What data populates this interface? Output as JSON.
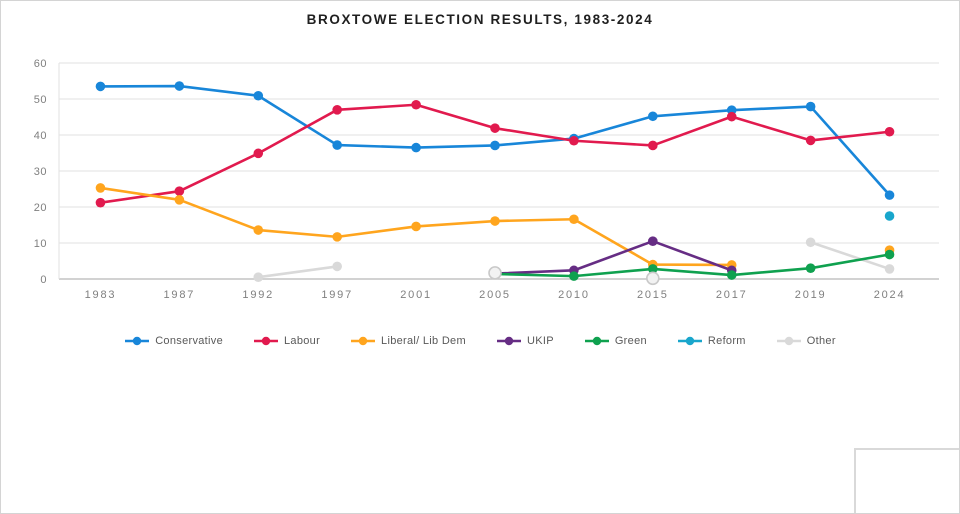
{
  "page": {
    "background": "#ffffff",
    "border_color": "#d4d4d4"
  },
  "chart": {
    "title_color": "#1f1f1f",
    "axis_label_color": "#7f7f7f",
    "gridline_color": "#e2e2e2",
    "zero_line_color": "#c4c4c4"
  },
  "chart_data": {
    "type": "line",
    "title": "BROXTOWE ELECTION RESULTS, 1983-2024",
    "categories": [
      "1983",
      "1987",
      "1992",
      "1997",
      "2001",
      "2005",
      "2010",
      "2015",
      "2017",
      "2019",
      "2024"
    ],
    "xlabel": "",
    "ylabel": "",
    "ylim": [
      0,
      60
    ],
    "ytick_step": 10,
    "ytick_labels": [
      "0",
      "10",
      "20",
      "30",
      "40",
      "50",
      "60"
    ],
    "grid": true,
    "legend_position": "bottom",
    "series": [
      {
        "name": "Conservative",
        "color": "#1886d9",
        "values": [
          53.5,
          53.6,
          50.9,
          37.2,
          36.5,
          37.1,
          39.0,
          45.2,
          46.9,
          47.9,
          23.3
        ]
      },
      {
        "name": "Labour",
        "color": "#e11a4e",
        "values": [
          21.2,
          24.4,
          34.9,
          47.0,
          48.4,
          41.9,
          38.4,
          37.1,
          45.1,
          38.5,
          40.9
        ]
      },
      {
        "name": "Liberal/ Lib Dem",
        "color": "#ffa51e",
        "values": [
          25.3,
          22.0,
          13.6,
          11.7,
          14.6,
          16.1,
          16.6,
          4.0,
          3.9,
          null,
          8.0
        ]
      },
      {
        "name": "UKIP",
        "color": "#662d84",
        "values": [
          null,
          null,
          null,
          null,
          null,
          1.5,
          2.4,
          10.5,
          2.4,
          null,
          null
        ]
      },
      {
        "name": "Green",
        "color": "#0fa14f",
        "values": [
          null,
          null,
          null,
          null,
          null,
          1.4,
          0.8,
          2.8,
          1.1,
          3.0,
          6.8
        ]
      },
      {
        "name": "Reform",
        "color": "#19a6cc",
        "values": [
          null,
          null,
          null,
          null,
          null,
          null,
          null,
          null,
          null,
          null,
          17.5
        ]
      },
      {
        "name": "Other",
        "color": "#d9d9d9",
        "values": [
          null,
          null,
          0.5,
          3.5,
          null,
          1.7,
          null,
          0.2,
          null,
          10.2,
          2.8
        ],
        "ring_markers": [
          5,
          7
        ]
      }
    ]
  }
}
